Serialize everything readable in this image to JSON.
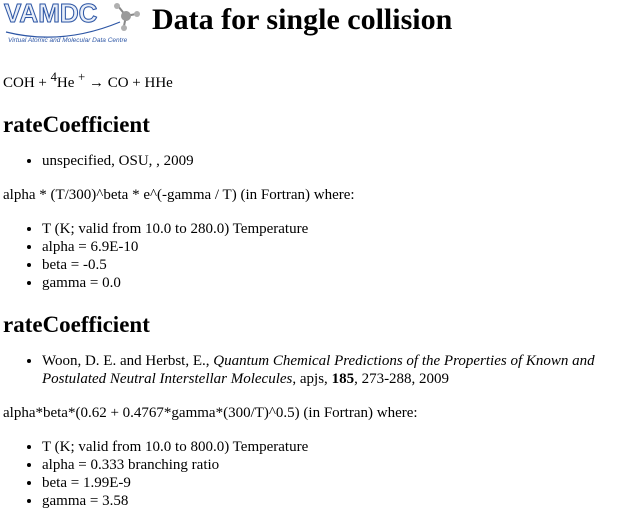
{
  "header": {
    "logo_text": "VAMDC",
    "logo_tagline": "Virtual Atomic and Molecular Data Centre",
    "title": "Data for single collision"
  },
  "reaction": {
    "reactant1": "COH",
    "plus1": " + ",
    "mass_number": "4",
    "reactant2": "He",
    "charge": "+",
    "arrow": " → ",
    "product1": "CO",
    "plus2": " + ",
    "product2": "HHe"
  },
  "sections": [
    {
      "heading": "rateCoefficient",
      "reference": "unspecified, OSU, , 2009",
      "formula": "alpha * (T/300)^beta * e^(-gamma / T) (in Fortran) where:",
      "params": [
        "T (K; valid from 10.0 to 280.0) Temperature",
        "alpha = 6.9E-10",
        "beta = -0.5",
        "gamma = 0.0"
      ]
    },
    {
      "heading": "rateCoefficient",
      "reference": {
        "authors": "Woon, D. E. and Herbst, E., ",
        "title": "Quantum Chemical Predictions of the Properties of Known and Postulated Neutral Interstellar Molecules",
        "journal": ", apjs, ",
        "volume": "185",
        "pages_year": ", 273-288, 2009"
      },
      "formula": "alpha*beta*(0.62 + 0.4767*gamma*(300/T)^0.5) (in Fortran) where:",
      "params": [
        "T (K; valid from 10.0 to 800.0) Temperature",
        "alpha = 0.333 branching ratio",
        "beta = 1.99E-9",
        "gamma = 3.58"
      ]
    }
  ]
}
